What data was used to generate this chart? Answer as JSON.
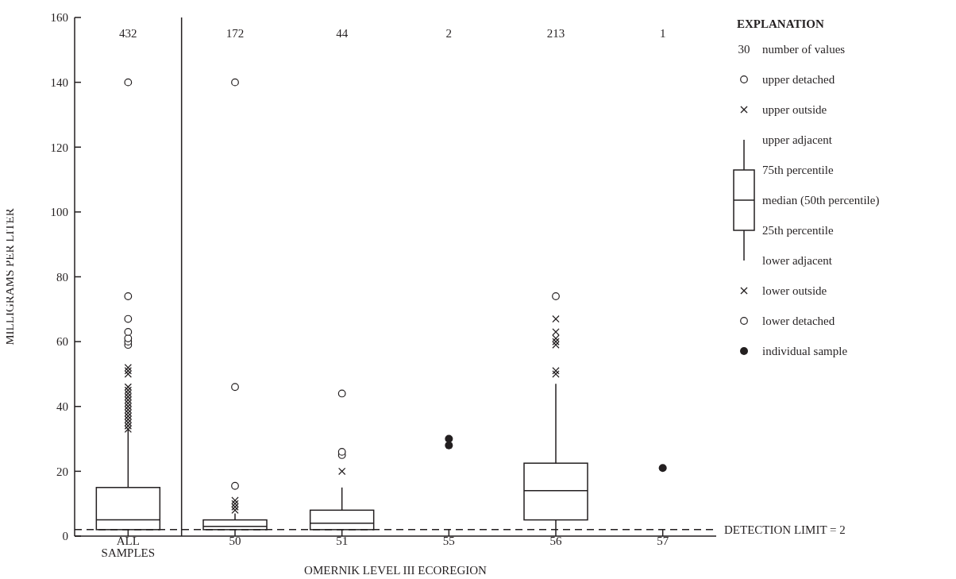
{
  "chart_data": {
    "type": "box",
    "xlabel": "OMERNIK LEVEL III ECOREGION",
    "ylabel": "MILLIGRAMS PER LITER",
    "legend_title": "EXPLANATION",
    "legend": "right",
    "categories": [
      "ALL SAMPLES",
      "50",
      "51",
      "55",
      "56",
      "57"
    ],
    "boxes": [
      {
        "low": 2,
        "q1": 2,
        "median": 5,
        "q3": 15,
        "high": 33
      },
      {
        "low": 2,
        "q1": 2,
        "median": 3,
        "q3": 5,
        "high": 7
      },
      {
        "low": 2,
        "q1": 2,
        "median": 4,
        "q3": 8,
        "high": 15
      },
      null,
      {
        "low": 2,
        "q1": 5,
        "median": 14,
        "q3": 22.5,
        "high": 47
      },
      null
    ],
    "series": [
      {
        "name": "upper detached",
        "type": "scatter",
        "marker": "circle",
        "color": "#231f20",
        "x": [
          "ALL SAMPLES",
          "ALL SAMPLES",
          "ALL SAMPLES",
          "ALL SAMPLES",
          "ALL SAMPLES",
          "ALL SAMPLES",
          "ALL SAMPLES",
          "50",
          "50",
          "50",
          "51",
          "51",
          "51",
          "56"
        ],
        "values": [
          59,
          60,
          61,
          63,
          67,
          74,
          140,
          15.5,
          46,
          140,
          25,
          26,
          44,
          74
        ]
      },
      {
        "name": "upper outside",
        "type": "scatter",
        "marker": "cross",
        "color": "#231f20",
        "x": [
          "ALL SAMPLES",
          "ALL SAMPLES",
          "ALL SAMPLES",
          "ALL SAMPLES",
          "ALL SAMPLES",
          "ALL SAMPLES",
          "ALL SAMPLES",
          "ALL SAMPLES",
          "ALL SAMPLES",
          "ALL SAMPLES",
          "ALL SAMPLES",
          "ALL SAMPLES",
          "ALL SAMPLES",
          "ALL SAMPLES",
          "ALL SAMPLES",
          "ALL SAMPLES",
          "ALL SAMPLES",
          "50",
          "50",
          "50",
          "50",
          "51",
          "56",
          "56",
          "56",
          "56",
          "56",
          "56",
          "56"
        ],
        "values": [
          33,
          34,
          35,
          36,
          37,
          38,
          39,
          40,
          41,
          42,
          43,
          44,
          45,
          46,
          50,
          51,
          52,
          8,
          9,
          10,
          11,
          20,
          50,
          51,
          59,
          60,
          61,
          63,
          67
        ]
      },
      {
        "name": "individual sample",
        "type": "scatter",
        "marker": "circle",
        "color": "#231f20",
        "x": [
          "55",
          "55",
          "57"
        ],
        "values": [
          28,
          30,
          21
        ]
      }
    ],
    "ylim": [
      0,
      160
    ],
    "yticks": [
      0,
      20,
      40,
      60,
      80,
      100,
      120,
      140,
      160
    ],
    "grid": false,
    "ref_lines": [
      {
        "axis": "y",
        "value": 2,
        "label": "DETECTION LIMIT = 2",
        "line_style": "dashed",
        "color": "#231f20"
      }
    ],
    "annotations": [
      "432",
      "172",
      "44",
      "2",
      "213",
      "1",
      "30",
      "number of values",
      "upper adjacent",
      "75th percentile",
      "median (50th percentile)",
      "25th percentile",
      "lower adjacent",
      "lower outside",
      "lower detached"
    ]
  }
}
